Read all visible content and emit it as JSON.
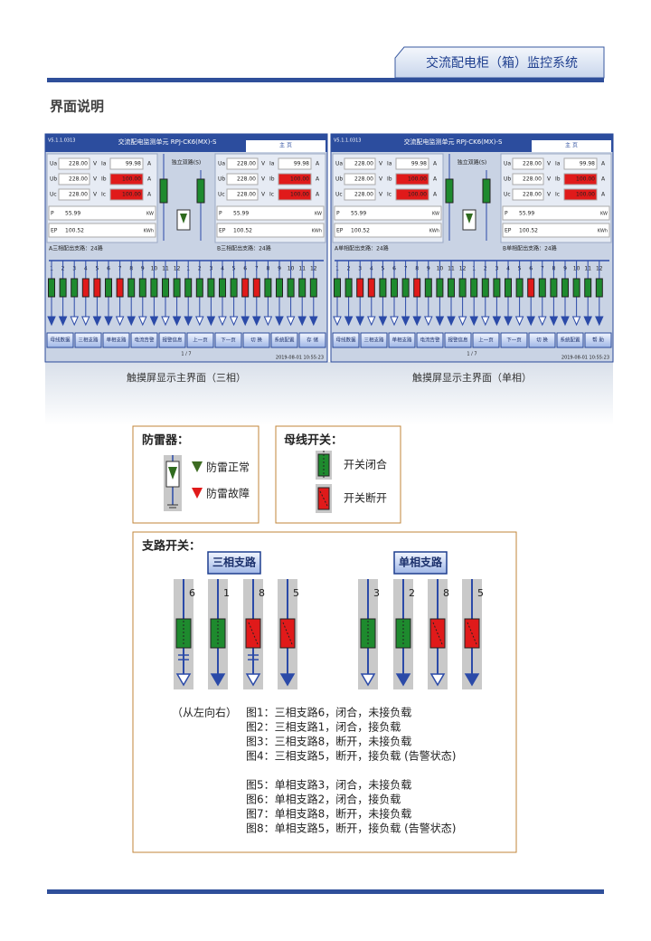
{
  "header": {
    "title": "交流配电柜（箱）监控系统"
  },
  "section_title": "界面说明",
  "screens": [
    {
      "version": "V5.1.1.0313",
      "title": "交流配电监测单元 RPJ-CK6(MX)-S",
      "home": "主  页",
      "mode": "独立双路(S)",
      "panels": [
        {
          "rows": [
            [
              "Ua",
              "228.00",
              "V",
              "Ia",
              "99.98",
              "A"
            ],
            [
              "Ub",
              "228.00",
              "V",
              "Ib",
              "100.00",
              "A"
            ],
            [
              "Uc",
              "228.00",
              "V",
              "Ic",
              "100.00",
              "A"
            ]
          ],
          "alarms": [
            false,
            true,
            true
          ],
          "power": [
            [
              "P",
              "55.99",
              "KW"
            ],
            [
              "EP",
              "100.52",
              "KWh"
            ]
          ],
          "branch_label": "A三相配出支路：24路",
          "branches": [
            "1",
            "2",
            "3",
            "4",
            "5",
            "6",
            "7",
            "8",
            "9",
            "10",
            "11",
            "12"
          ],
          "closed": [
            true,
            true,
            true,
            false,
            false,
            true,
            false,
            true,
            true,
            true,
            true,
            true
          ],
          "loaded": [
            true,
            true,
            false,
            false,
            true,
            true,
            false,
            true,
            false,
            true,
            false,
            true
          ]
        },
        {
          "rows": [
            [
              "Ua",
              "228.00",
              "V",
              "Ia",
              "99.98",
              "A"
            ],
            [
              "Ub",
              "228.00",
              "V",
              "Ib",
              "100.00",
              "A"
            ],
            [
              "Uc",
              "228.00",
              "V",
              "Ic",
              "100.00",
              "A"
            ]
          ],
          "alarms": [
            false,
            true,
            true
          ],
          "power": [
            [
              "P",
              "55.99",
              "KW"
            ],
            [
              "EP",
              "100.52",
              "KWh"
            ]
          ],
          "branch_label": "B三相配出支路：24路",
          "branches": [
            "1",
            "2",
            "3",
            "4",
            "5",
            "6",
            "7",
            "8",
            "9",
            "10",
            "11",
            "12"
          ],
          "closed": [
            true,
            true,
            true,
            true,
            true,
            false,
            false,
            true,
            true,
            true,
            true,
            true
          ],
          "loaded": [
            true,
            false,
            true,
            false,
            false,
            true,
            true,
            false,
            true,
            false,
            true,
            true
          ]
        }
      ],
      "buttons": [
        "母线数据",
        "三相支路",
        "单相支路",
        "电流告警",
        "报警信息",
        "上一页",
        "下一页",
        "切  换",
        "系统配置",
        "存  储"
      ],
      "page": "1 / 7",
      "time": "2019-08-01 10:55:23",
      "caption": "触摸屏显示主界面（三相）"
    },
    {
      "version": "V5.1.1.0313",
      "title": "交流配电监测单元 RPJ-CK6(MX)-S",
      "home": "主  页",
      "mode": "独立双路(S)",
      "panels": [
        {
          "rows": [
            [
              "Ua",
              "228.00",
              "V",
              "Ia",
              "99.98",
              "A"
            ],
            [
              "Ub",
              "228.00",
              "V",
              "Ib",
              "100.00",
              "A"
            ],
            [
              "Uc",
              "228.00",
              "V",
              "Ic",
              "100.00",
              "A"
            ]
          ],
          "alarms": [
            false,
            true,
            true
          ],
          "power": [
            [
              "P",
              "55.99",
              "KW"
            ],
            [
              "EP",
              "100.52",
              "KWh"
            ]
          ],
          "branch_label": "A单相配出支路：24路",
          "branches": [
            "1",
            "2",
            "3",
            "4",
            "5",
            "6",
            "7",
            "8",
            "9",
            "10",
            "11",
            "12"
          ],
          "closed": [
            true,
            true,
            false,
            false,
            true,
            true,
            true,
            false,
            true,
            true,
            true,
            true
          ],
          "loaded": [
            false,
            true,
            true,
            false,
            true,
            false,
            true,
            true,
            false,
            true,
            true,
            false
          ]
        },
        {
          "rows": [
            [
              "Ua",
              "228.00",
              "V",
              "Ia",
              "99.98",
              "A"
            ],
            [
              "Ub",
              "228.00",
              "V",
              "Ib",
              "100.00",
              "A"
            ],
            [
              "Uc",
              "228.00",
              "V",
              "Ic",
              "100.00",
              "A"
            ]
          ],
          "alarms": [
            false,
            true,
            true
          ],
          "power": [
            [
              "P",
              "55.99",
              "KW"
            ],
            [
              "EP",
              "100.52",
              "KWh"
            ]
          ],
          "branch_label": "B单相配出支路：24路",
          "branches": [
            "1",
            "2",
            "3",
            "4",
            "5",
            "6",
            "7",
            "8",
            "9",
            "10",
            "11",
            "12"
          ],
          "closed": [
            true,
            true,
            true,
            true,
            true,
            false,
            true,
            true,
            true,
            true,
            true,
            true
          ],
          "loaded": [
            true,
            false,
            true,
            true,
            false,
            true,
            false,
            true,
            true,
            false,
            true,
            true
          ]
        }
      ],
      "buttons": [
        "母线数据",
        "三相支路",
        "单相支路",
        "电流告警",
        "报警信息",
        "上一页",
        "下一页",
        "切  换",
        "系统配置",
        "帮  助"
      ],
      "page": "1 / 7",
      "time": "2019-08-01 10:55:23",
      "caption": "触摸屏显示主界面（单相）"
    }
  ],
  "arrester": {
    "title": "防雷器：",
    "normal": "防雷正常",
    "fault": "防雷故障"
  },
  "bus_switch": {
    "title": "母线开关：",
    "closed": "开关闭合",
    "open": "开关断开"
  },
  "branch_switch": {
    "title": "支路开关：",
    "groups": [
      {
        "tag": "三相支路",
        "three_phase": true,
        "icons": [
          {
            "number": "6",
            "closed": true,
            "loaded": false
          },
          {
            "number": "1",
            "closed": true,
            "loaded": true
          },
          {
            "number": "8",
            "closed": false,
            "loaded": false
          },
          {
            "number": "5",
            "closed": false,
            "loaded": true
          }
        ]
      },
      {
        "tag": "单相支路",
        "three_phase": false,
        "icons": [
          {
            "number": "3",
            "closed": true,
            "loaded": false
          },
          {
            "number": "2",
            "closed": true,
            "loaded": true
          },
          {
            "number": "8",
            "closed": false,
            "loaded": false
          },
          {
            "number": "5",
            "closed": false,
            "loaded": true
          }
        ]
      }
    ],
    "order_note": "（从左向右）",
    "notes": [
      "图1：三相支路6，闭合，未接负载",
      "图2：三相支路1，闭合，接负载",
      "图3：三相支路8，断开，未接负载",
      "图4：三相支路5，断开，接负载  (告警状态)",
      "图5：单相支路3，闭合，未接负载",
      "图6：单相支路2，闭合，接负载",
      "图7：单相支路8，断开，未接负载",
      "图8：单相支路5，断开，接负载  (告警状态)"
    ]
  }
}
